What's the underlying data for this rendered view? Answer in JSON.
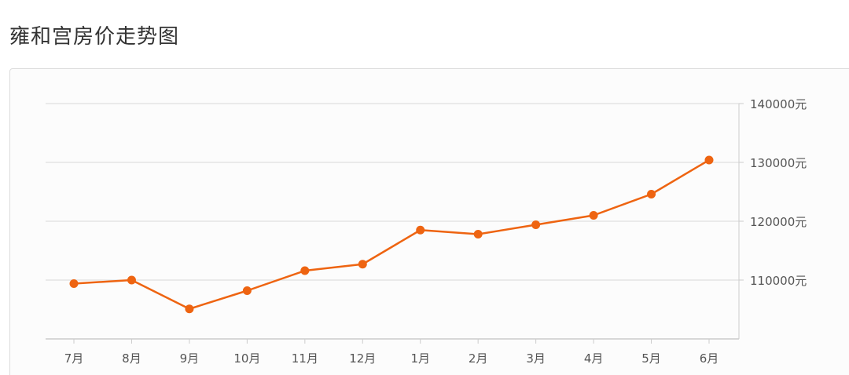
{
  "page": {
    "title": "雍和宫房价走势图"
  },
  "chart_data": {
    "type": "line",
    "title": "",
    "xlabel": "",
    "ylabel": "",
    "categories": [
      "7月",
      "8月",
      "9月",
      "10月",
      "11月",
      "12月",
      "1月",
      "2月",
      "3月",
      "4月",
      "5月",
      "6月"
    ],
    "series": [
      {
        "values": [
          109400,
          110000,
          105100,
          108200,
          111600,
          112700,
          118500,
          117800,
          119400,
          121000,
          124600,
          130400
        ]
      }
    ],
    "y_axis": {
      "position": "right",
      "ticks": [
        110000,
        120000,
        130000,
        140000
      ],
      "tick_labels": [
        "110000元",
        "120000元",
        "130000元",
        "140000元"
      ],
      "ylim": [
        100000,
        140000
      ]
    },
    "grid": true,
    "legend": "none",
    "colors": {
      "line": "#ee6411",
      "point": "#ee6411",
      "grid": "#e0e0e0",
      "axis": "#cccccc"
    }
  }
}
